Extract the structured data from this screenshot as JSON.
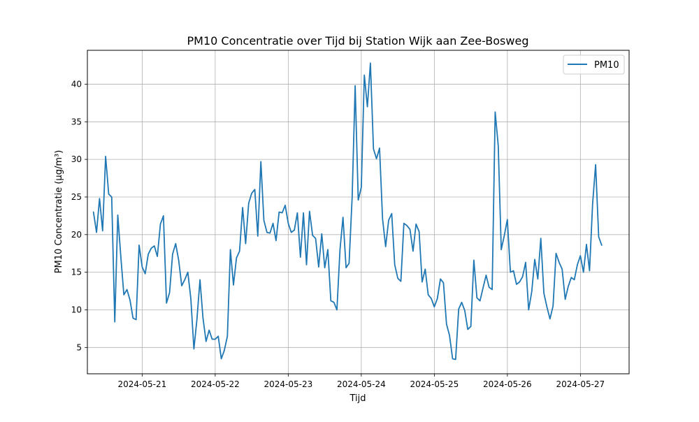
{
  "chart_data": {
    "type": "line",
    "title": "PM10 Concentratie over Tijd bij Station Wijk aan Zee-Bosweg",
    "xlabel": "Tijd",
    "ylabel": "PM10 Concentratie (µg/m³)",
    "x_start": "2024-05-20 08:00",
    "x_step_hours": 1,
    "xlim": [
      "2024-05-20 06:00",
      "2024-05-27 16:00"
    ],
    "ylim": [
      1.5,
      44.5
    ],
    "x_ticks": [
      "2024-05-21",
      "2024-05-22",
      "2024-05-23",
      "2024-05-24",
      "2024-05-25",
      "2024-05-26",
      "2024-05-27"
    ],
    "y_ticks": [
      5,
      10,
      15,
      20,
      25,
      30,
      35,
      40
    ],
    "grid": true,
    "legend_position": "top-right",
    "series": [
      {
        "name": "PM10",
        "color": "#1f77b4",
        "values": [
          23.0,
          20.3,
          24.8,
          20.5,
          30.4,
          25.4,
          25.0,
          8.4,
          22.6,
          17.0,
          12.0,
          12.7,
          11.3,
          8.9,
          8.7,
          18.6,
          15.7,
          14.8,
          17.4,
          18.2,
          18.5,
          17.1,
          21.4,
          22.5,
          10.9,
          12.3,
          17.4,
          18.8,
          16.6,
          13.2,
          14.0,
          15.0,
          11.5,
          4.8,
          8.7,
          14.0,
          8.9,
          5.8,
          7.3,
          6.1,
          6.1,
          6.5,
          3.5,
          4.6,
          6.5,
          18.0,
          13.3,
          16.9,
          17.8,
          23.6,
          18.8,
          24.2,
          25.5,
          26.0,
          19.8,
          29.7,
          21.9,
          20.3,
          20.2,
          21.5,
          19.2,
          23.0,
          22.9,
          23.9,
          21.5,
          20.3,
          20.6,
          22.9,
          17.0,
          22.9,
          16.0,
          23.1,
          19.9,
          19.5,
          15.7,
          20.1,
          15.6,
          18.0,
          11.2,
          11.0,
          10.0,
          18.0,
          22.3,
          15.6,
          16.2,
          25.0,
          39.8,
          24.6,
          26.3,
          41.2,
          37.0,
          42.8,
          31.4,
          30.1,
          31.5,
          22.1,
          18.4,
          21.9,
          22.8,
          16.0,
          14.2,
          13.8,
          21.5,
          21.2,
          20.7,
          17.8,
          21.4,
          20.4,
          13.7,
          15.4,
          12.0,
          11.5,
          10.4,
          11.5,
          14.1,
          13.6,
          8.1,
          6.6,
          3.5,
          3.4,
          10.1,
          11.0,
          9.9,
          7.4,
          7.8,
          16.6,
          11.6,
          11.2,
          12.9,
          14.6,
          13.0,
          12.7,
          36.3,
          31.8,
          18.0,
          19.9,
          22.0,
          15.0,
          15.2,
          13.4,
          13.7,
          14.4,
          16.3,
          10.0,
          12.4,
          16.7,
          14.1,
          19.5,
          12.2,
          10.4,
          8.8,
          10.5,
          17.5,
          16.3,
          15.4,
          11.4,
          13.1,
          14.3,
          14.0,
          16.0,
          17.2,
          15.0,
          18.7,
          15.2,
          24.1,
          29.3,
          19.7,
          18.6
        ]
      }
    ]
  }
}
